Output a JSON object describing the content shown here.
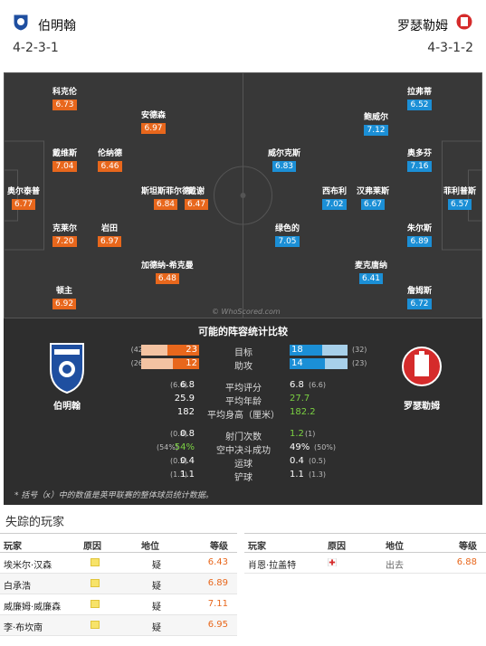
{
  "header": {
    "home_team": "伯明翰",
    "away_team": "罗瑟勒姆",
    "home_formation": "4-2-3-1",
    "away_formation": "4-3-1-2"
  },
  "home_players": [
    {
      "name": "科克伦",
      "rating": "6.73"
    },
    {
      "name": "安德森",
      "rating": "6.97"
    },
    {
      "name": "戴维斯",
      "rating": "7.04"
    },
    {
      "name": "伦纳德",
      "rating": "6.46"
    },
    {
      "name": "奥尔泰普",
      "rating": "6.77"
    },
    {
      "name": "斯坦斯菲尔德",
      "rating": "6.84"
    },
    {
      "name": "戴谢",
      "rating": "6.47"
    },
    {
      "name": "克莱尔",
      "rating": "7.20"
    },
    {
      "name": "岩田",
      "rating": "6.97"
    },
    {
      "name": "加德纳-希克曼",
      "rating": "6.48"
    },
    {
      "name": "顿主",
      "rating": "6.92"
    }
  ],
  "away_players": [
    {
      "name": "拉弗蒂",
      "rating": "6.52"
    },
    {
      "name": "鲍威尔",
      "rating": "7.12"
    },
    {
      "name": "威尔克斯",
      "rating": "6.83"
    },
    {
      "name": "奥多芬",
      "rating": "7.16"
    },
    {
      "name": "西布利",
      "rating": "7.02"
    },
    {
      "name": "汉弗莱斯",
      "rating": "6.67"
    },
    {
      "name": "菲利普斯",
      "rating": "6.57"
    },
    {
      "name": "绿色的",
      "rating": "7.05"
    },
    {
      "name": "朱尔斯",
      "rating": "6.89"
    },
    {
      "name": "麦克唐纳",
      "rating": "6.41"
    },
    {
      "name": "詹姆斯",
      "rating": "6.72"
    }
  ],
  "watermark": "© WhoScored.com",
  "comparison": {
    "title": "可能的阵容统计比较",
    "home_label": "伯明翰",
    "away_label": "罗瑟勒姆",
    "bars": [
      {
        "label": "目标",
        "home": 23,
        "home_total": "(42)",
        "away": 18,
        "away_total": "(32)",
        "home_frac": 0.55,
        "away_frac": 0.56
      },
      {
        "label": "助攻",
        "home": 12,
        "home_total": "(26)",
        "away": 14,
        "away_total": "(23)",
        "home_frac": 0.46,
        "away_frac": 0.61
      }
    ],
    "rows": [
      {
        "label": "平均评分",
        "home_small": "(6.6)",
        "home": "6.8",
        "away": "6.8",
        "away_small": "(6.6)",
        "home_green": false,
        "away_green": false
      },
      {
        "label": "平均年龄",
        "home_small": "",
        "home": "25.9",
        "away": "27.7",
        "away_small": "",
        "home_green": false,
        "away_green": true
      },
      {
        "label": "平均身高（厘米）",
        "home_small": "",
        "home": "182",
        "away": "182.2",
        "away_small": "",
        "home_green": false,
        "away_green": true
      },
      {
        "label": "射门次数",
        "home_small": "(0.8)",
        "home": "0.8",
        "away": "1.2",
        "away_small": "(1)",
        "home_green": false,
        "away_green": true
      },
      {
        "label": "空中决斗成功",
        "home_small": "(54%)",
        "home": "54%",
        "away": "49%",
        "away_small": "(50%)",
        "home_green": true,
        "away_green": false
      },
      {
        "label": "运球",
        "home_small": "(0.5)",
        "home": "0.4",
        "away": "0.4",
        "away_small": "(0.5)",
        "home_green": false,
        "away_green": false
      },
      {
        "label": "铲球",
        "home_small": "(1.3)",
        "home": "1.1",
        "away": "1.1",
        "away_small": "(1.3)",
        "home_green": false,
        "away_green": false
      }
    ],
    "note": "* 括号（x）中的数值是英甲联赛的整体球员统计数据。"
  },
  "missing": {
    "title": "失踪的玩家",
    "headers": [
      "玩家",
      "原因",
      "地位",
      "等级"
    ],
    "left": [
      {
        "player": "埃米尔·汉森",
        "status": "疑",
        "rating": "6.43"
      },
      {
        "player": "白承浩",
        "status": "疑",
        "rating": "6.89"
      },
      {
        "player": "威廉姆·威廉森",
        "status": "疑",
        "rating": "7.11"
      },
      {
        "player": "李·布坎南",
        "status": "疑",
        "rating": "6.95"
      }
    ],
    "right": [
      {
        "player": "肖恩·拉盖特",
        "status": "出去",
        "rating": "6.88"
      }
    ]
  }
}
